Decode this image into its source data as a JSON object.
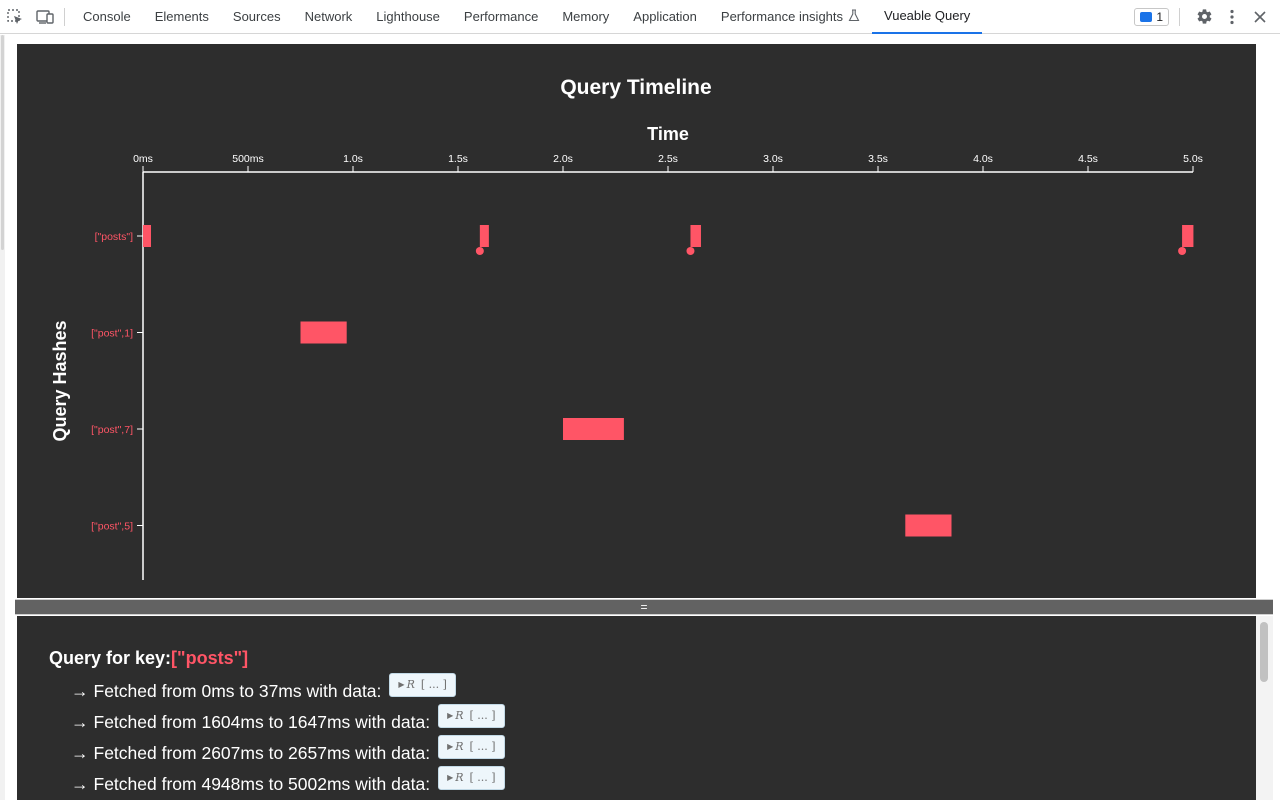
{
  "tabs": [
    {
      "label": "Console"
    },
    {
      "label": "Elements"
    },
    {
      "label": "Sources"
    },
    {
      "label": "Network"
    },
    {
      "label": "Lighthouse"
    },
    {
      "label": "Performance"
    },
    {
      "label": "Memory"
    },
    {
      "label": "Application"
    },
    {
      "label": "Performance insights"
    },
    {
      "label": "Vueable Query"
    }
  ],
  "active_tab": "Vueable Query",
  "issues_count": "1",
  "splitter_label": "=",
  "colors": {
    "accent": "#ff5566",
    "background": "#2d2d2d",
    "active_tab": "#1a73e8"
  },
  "chart_data": {
    "type": "timeline",
    "title": "Query Timeline",
    "xlabel": "Time",
    "ylabel": "Query Hashes",
    "xlim": [
      0,
      5000
    ],
    "x_ticks": [
      {
        "value": 0,
        "label": "0ms"
      },
      {
        "value": 500,
        "label": "500ms"
      },
      {
        "value": 1000,
        "label": "1.0s"
      },
      {
        "value": 1500,
        "label": "1.5s"
      },
      {
        "value": 2000,
        "label": "2.0s"
      },
      {
        "value": 2500,
        "label": "2.5s"
      },
      {
        "value": 3000,
        "label": "3.0s"
      },
      {
        "value": 3500,
        "label": "3.5s"
      },
      {
        "value": 4000,
        "label": "4.0s"
      },
      {
        "value": 4500,
        "label": "4.5s"
      },
      {
        "value": 5000,
        "label": "5.0s"
      }
    ],
    "categories": [
      "[\"posts\"]",
      "[\"post\",1]",
      "[\"post\",7]",
      "[\"post\",5]"
    ],
    "series": [
      {
        "category": "[\"posts\"]",
        "start": 0,
        "end": 37,
        "marker": false
      },
      {
        "category": "[\"posts\"]",
        "start": 1604,
        "end": 1647,
        "marker": true
      },
      {
        "category": "[\"posts\"]",
        "start": 2607,
        "end": 2657,
        "marker": true
      },
      {
        "category": "[\"posts\"]",
        "start": 4948,
        "end": 5002,
        "marker": true
      },
      {
        "category": "[\"post\",1]",
        "start": 750,
        "end": 970,
        "marker": false
      },
      {
        "category": "[\"post\",7]",
        "start": 2000,
        "end": 2290,
        "marker": false
      },
      {
        "category": "[\"post\",5]",
        "start": 3630,
        "end": 3850,
        "marker": false
      }
    ],
    "grid": false
  },
  "details": {
    "heading_prefix": "Query for key:",
    "key": "[\"posts\"]",
    "fetches": [
      {
        "text": "Fetched from 0ms to 37ms with data:"
      },
      {
        "text": "Fetched from 1604ms to 1647ms with data:"
      },
      {
        "text": "Fetched from 2607ms to 2657ms with data:"
      },
      {
        "text": "Fetched from 4948ms to 5002ms with data:"
      }
    ],
    "arrow": "→",
    "chip": {
      "triangle": "▶",
      "name": "R",
      "value": "[ ... ]"
    }
  }
}
